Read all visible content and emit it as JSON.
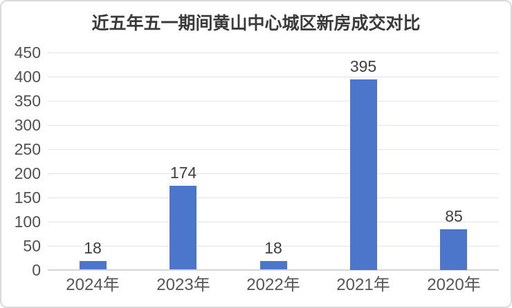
{
  "chart_data": {
    "type": "bar",
    "title": "近五年五一期间黄山中心城区新房成交对比",
    "categories": [
      "2024年",
      "2023年",
      "2022年",
      "2021年",
      "2020年"
    ],
    "values": [
      18,
      174,
      18,
      395,
      85
    ],
    "data_labels": [
      "18",
      "174",
      "18",
      "395",
      "85"
    ],
    "xlabel": "",
    "ylabel": "",
    "ylim": [
      0,
      450
    ],
    "yticks": [
      0,
      50,
      100,
      150,
      200,
      250,
      300,
      350,
      400,
      450
    ],
    "grid": true,
    "legend_position": "none",
    "colors": {
      "bar": "#4b76c9",
      "gridline": "#e5e5e5",
      "axis_line": "#d5d5d5",
      "card_border": "#d9d9d9",
      "title_text": "#3a3a3a",
      "tick_text": "#515151",
      "value_label_text": "#3f3f3f",
      "category_text": "#565656",
      "background": "#ffffff"
    }
  }
}
